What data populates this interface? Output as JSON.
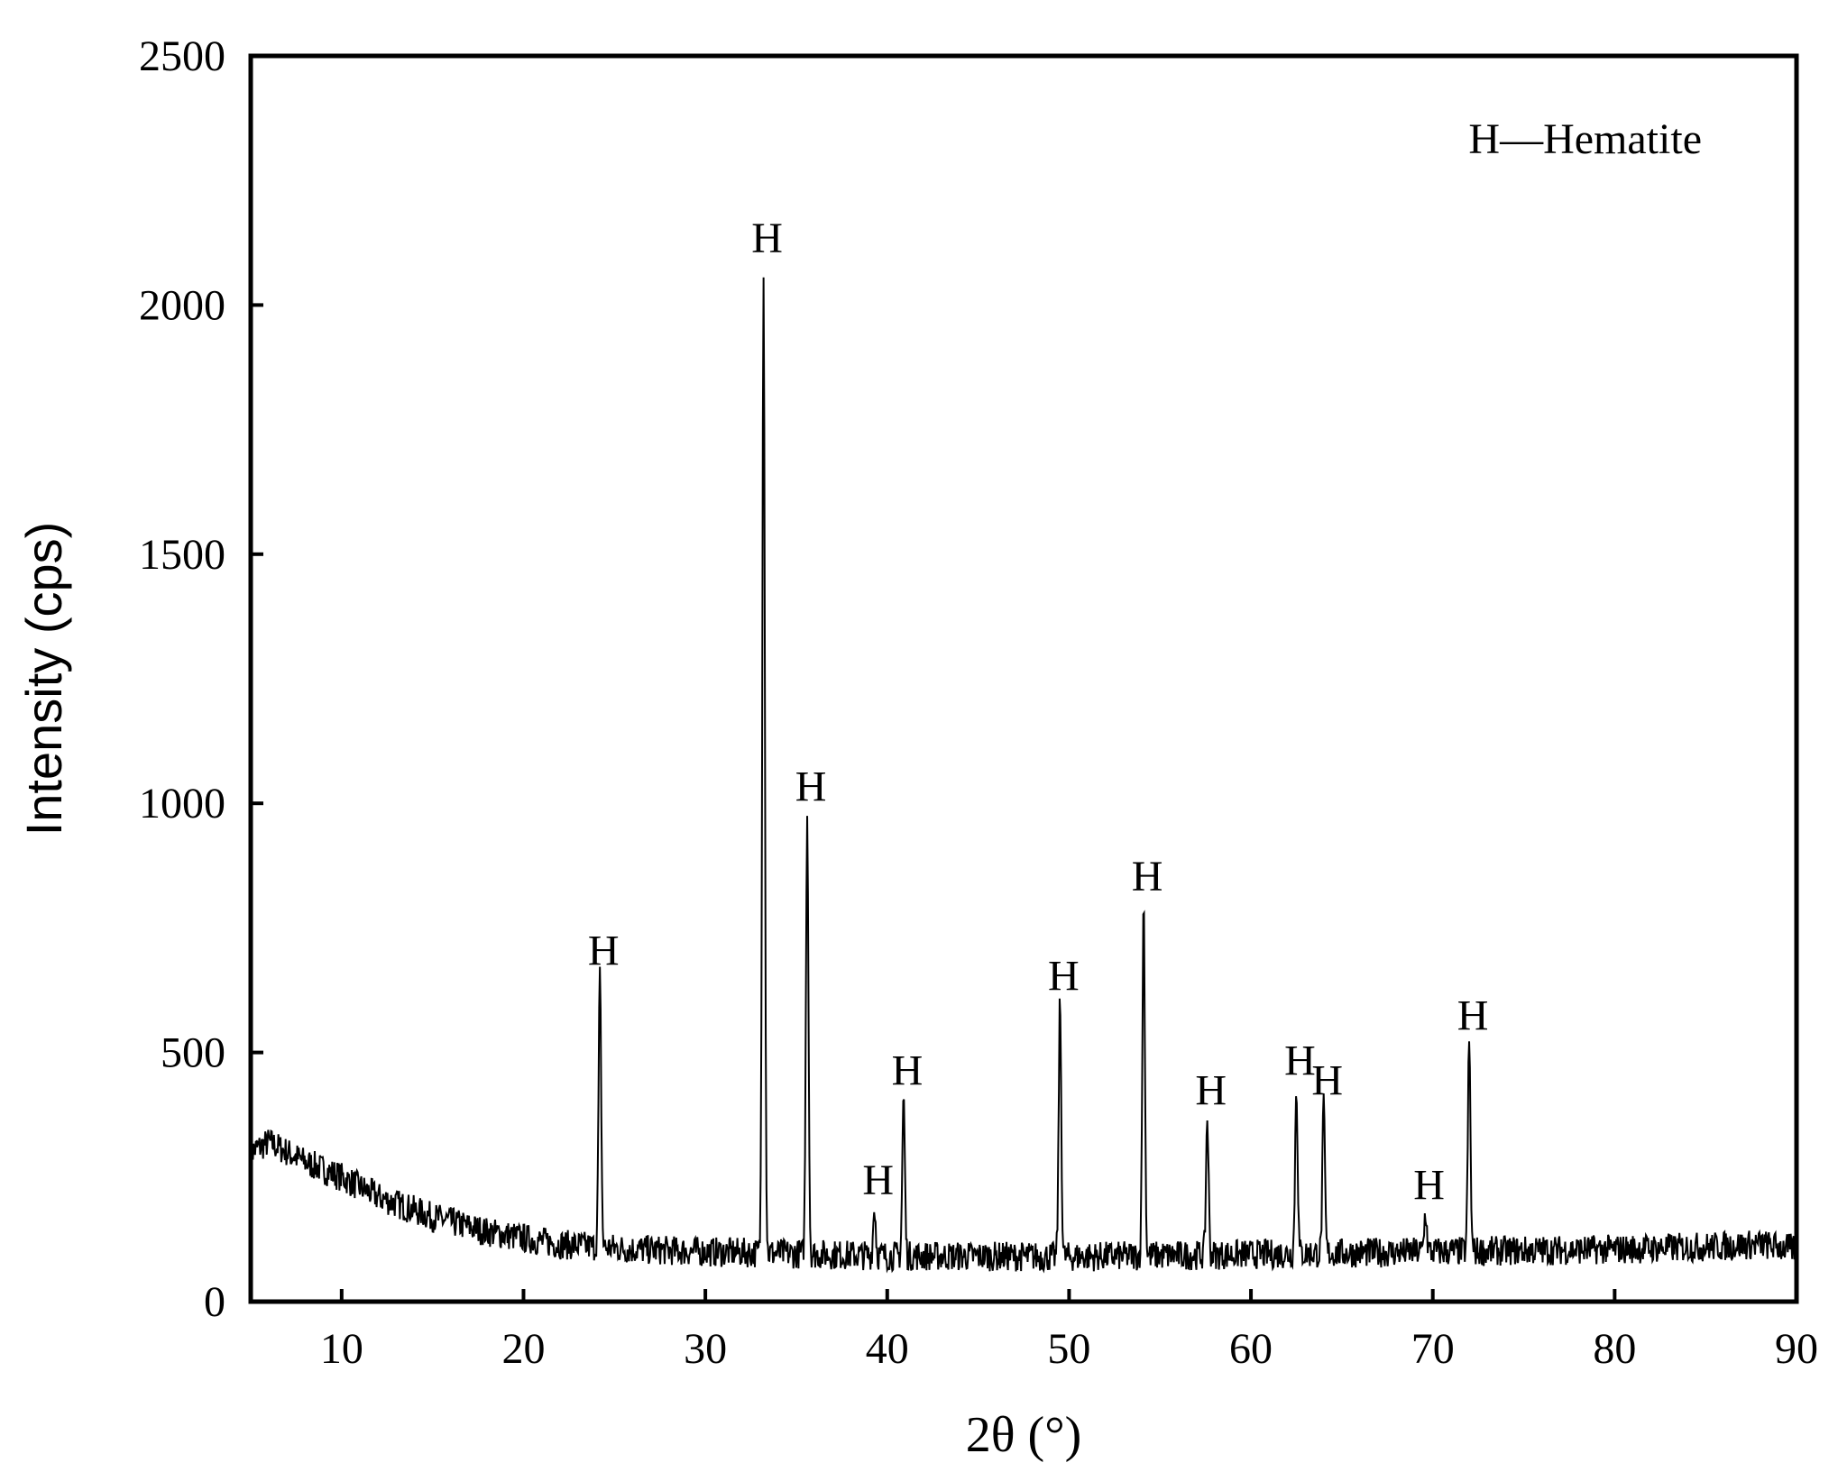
{
  "chart_data": {
    "type": "line",
    "title": "",
    "xlabel": "2θ (°)",
    "ylabel": "Intensity (cps)",
    "xlim": [
      5,
      90
    ],
    "ylim": [
      0,
      2500
    ],
    "x_ticks": [
      10,
      20,
      30,
      40,
      50,
      60,
      70,
      80,
      90
    ],
    "y_ticks": [
      0,
      500,
      1000,
      1500,
      2000,
      2500
    ],
    "grid": false,
    "legend": {
      "text": "H—Hematite",
      "placement": "top-right"
    },
    "line_color": "#000000",
    "background": {
      "description_points": [
        [
          5,
          300
        ],
        [
          6,
          320
        ],
        [
          8,
          280
        ],
        [
          10,
          250
        ],
        [
          12,
          210
        ],
        [
          15,
          170
        ],
        [
          18,
          140
        ],
        [
          22,
          115
        ],
        [
          26,
          105
        ],
        [
          30,
          100
        ],
        [
          40,
          92
        ],
        [
          50,
          90
        ],
        [
          60,
          95
        ],
        [
          70,
          100
        ],
        [
          80,
          105
        ],
        [
          85,
          110
        ],
        [
          88,
          115
        ],
        [
          90,
          105
        ]
      ],
      "noise_amplitude": 30,
      "seed": 7
    },
    "peaks": [
      {
        "x": 24.2,
        "y": 650,
        "label": "H"
      },
      {
        "x": 33.2,
        "y": 2080,
        "label": "H"
      },
      {
        "x": 35.6,
        "y": 980,
        "label": "H"
      },
      {
        "x": 39.3,
        "y": 190,
        "label": "H"
      },
      {
        "x": 40.9,
        "y": 410,
        "label": "H"
      },
      {
        "x": 49.5,
        "y": 600,
        "label": "H"
      },
      {
        "x": 54.1,
        "y": 800,
        "label": "H"
      },
      {
        "x": 57.6,
        "y": 370,
        "label": "H"
      },
      {
        "x": 62.5,
        "y": 430,
        "label": "H"
      },
      {
        "x": 64.0,
        "y": 390,
        "label": "H"
      },
      {
        "x": 69.6,
        "y": 180,
        "label": "H"
      },
      {
        "x": 72.0,
        "y": 520,
        "label": "H"
      }
    ]
  }
}
